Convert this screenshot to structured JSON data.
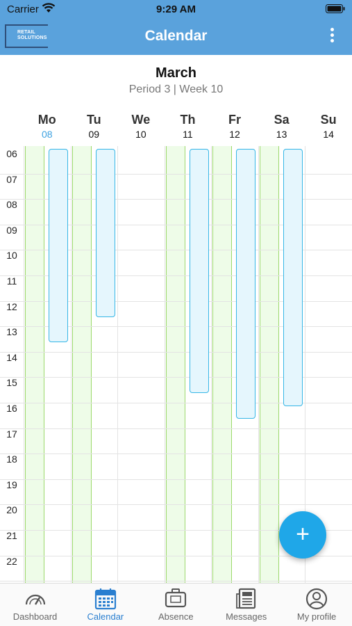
{
  "status_bar": {
    "carrier": "Carrier",
    "time": "9:29 AM"
  },
  "header": {
    "logo_text": "RETAIL SOLUTIONS",
    "title": "Calendar"
  },
  "month": {
    "name": "March",
    "subtitle": "Period 3 | Week 10"
  },
  "days": [
    {
      "name": "Mo",
      "date": "08",
      "today": true
    },
    {
      "name": "Tu",
      "date": "09",
      "today": false
    },
    {
      "name": "We",
      "date": "10",
      "today": false
    },
    {
      "name": "Th",
      "date": "11",
      "today": false
    },
    {
      "name": "Fr",
      "date": "12",
      "today": false
    },
    {
      "name": "Sa",
      "date": "13",
      "today": false
    },
    {
      "name": "Su",
      "date": "14",
      "today": false
    }
  ],
  "hours": [
    "06",
    "07",
    "08",
    "09",
    "10",
    "11",
    "12",
    "13",
    "14",
    "15",
    "16",
    "17",
    "18",
    "19",
    "20",
    "21",
    "22"
  ],
  "availability_days": [
    "Mo",
    "Tu",
    "Th",
    "Fr",
    "Sa"
  ],
  "shifts": [
    {
      "day": "Mo",
      "start": 6.0,
      "end": 13.6
    },
    {
      "day": "Tu",
      "start": 6.0,
      "end": 12.6
    },
    {
      "day": "Th",
      "start": 6.0,
      "end": 15.6
    },
    {
      "day": "Fr",
      "start": 6.0,
      "end": 16.6
    },
    {
      "day": "Sa",
      "start": 6.0,
      "end": 16.1
    }
  ],
  "fab": {
    "label": "+"
  },
  "tabs": [
    {
      "label": "Dashboard",
      "icon": "gauge-icon",
      "active": false
    },
    {
      "label": "Calendar",
      "icon": "calendar-icon",
      "active": true
    },
    {
      "label": "Absence",
      "icon": "suitcase-icon",
      "active": false
    },
    {
      "label": "Messages",
      "icon": "newspaper-icon",
      "active": false
    },
    {
      "label": "My profile",
      "icon": "user-icon",
      "active": false
    }
  ],
  "colors": {
    "header": "#5aa2dc",
    "today": "#3da1e0",
    "availability": "#eefce8",
    "shift_border": "#35b6e6",
    "fab": "#1fa7e8",
    "tab_active": "#2a7fd0"
  }
}
